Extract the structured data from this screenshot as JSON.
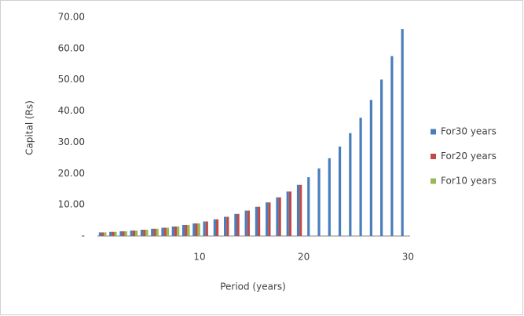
{
  "chart_data": {
    "type": "bar",
    "x_label": "Period (years)",
    "y_label": "Capital (Rs)",
    "categories": [
      null,
      null,
      null,
      null,
      null,
      null,
      null,
      null,
      null,
      "10",
      null,
      null,
      null,
      null,
      null,
      null,
      null,
      null,
      null,
      "20",
      null,
      null,
      null,
      null,
      null,
      null,
      null,
      null,
      null,
      "30"
    ],
    "series": [
      {
        "name": "For30 years",
        "color": "#4a7ebb",
        "values": [
          1.15,
          1.32,
          1.52,
          1.75,
          2.01,
          2.31,
          2.66,
          3.06,
          3.52,
          4.05,
          4.65,
          5.35,
          6.15,
          7.08,
          8.14,
          9.36,
          10.76,
          12.38,
          14.23,
          16.37,
          18.82,
          21.64,
          24.89,
          28.63,
          32.92,
          37.86,
          43.54,
          50.07,
          57.58,
          66.21
        ]
      },
      {
        "name": "For20 years",
        "color": "#be4b48",
        "values": [
          1.15,
          1.32,
          1.52,
          1.75,
          2.01,
          2.31,
          2.66,
          3.06,
          3.52,
          4.05,
          4.65,
          5.35,
          6.15,
          7.08,
          8.14,
          9.36,
          10.76,
          12.38,
          14.23,
          16.37,
          null,
          null,
          null,
          null,
          null,
          null,
          null,
          null,
          null,
          null
        ]
      },
      {
        "name": "For10 years",
        "color": "#98b954",
        "values": [
          1.15,
          1.32,
          1.52,
          1.75,
          2.01,
          2.31,
          2.66,
          3.06,
          3.52,
          4.05,
          null,
          null,
          null,
          null,
          null,
          null,
          null,
          null,
          null,
          null,
          null,
          null,
          null,
          null,
          null,
          null,
          null,
          null,
          null,
          null
        ]
      }
    ],
    "ylim": [
      0,
      70
    ],
    "yticks": [
      {
        "value": 0,
        "label": "-"
      },
      {
        "value": 10,
        "label": "10.00"
      },
      {
        "value": 20,
        "label": "20.00"
      },
      {
        "value": 30,
        "label": "30.00"
      },
      {
        "value": 40,
        "label": "40.00"
      },
      {
        "value": 50,
        "label": "50.00"
      },
      {
        "value": 60,
        "label": "60.00"
      },
      {
        "value": 70,
        "label": "70.00"
      }
    ],
    "grid": false,
    "legend": "right"
  }
}
